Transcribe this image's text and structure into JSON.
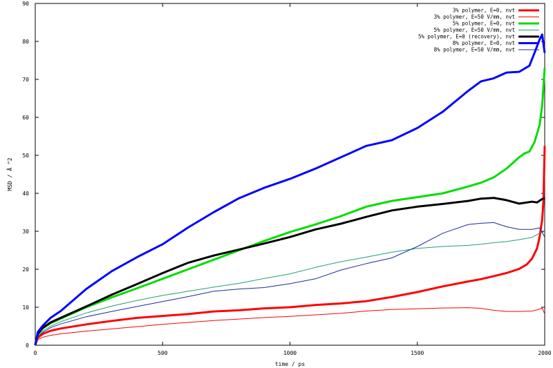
{
  "chart_data": {
    "type": "line",
    "title": "",
    "xlabel": "time / ps",
    "ylabel": "MSD / Å ^2",
    "xlim": [
      0,
      2000
    ],
    "ylim": [
      0,
      90
    ],
    "xticks": [
      0,
      500,
      1000,
      1500,
      2000
    ],
    "yticks": [
      0,
      10,
      20,
      30,
      40,
      50,
      60,
      70,
      80,
      90
    ],
    "grid": false,
    "legend_position": "top-right",
    "series": [
      {
        "name": "3% polymer, E=0, nvt",
        "color": "#ff0000",
        "line_width": "thick",
        "x": [
          0,
          10,
          30,
          60,
          100,
          200,
          300,
          400,
          500,
          600,
          700,
          800,
          900,
          1000,
          1100,
          1200,
          1300,
          1400,
          1500,
          1600,
          1700,
          1750,
          1800,
          1850,
          1900,
          1930,
          1950,
          1970,
          1980,
          1990,
          1995,
          2000
        ],
        "y": [
          0,
          2.0,
          3.0,
          3.8,
          4.4,
          5.5,
          6.4,
          7.2,
          7.7,
          8.2,
          8.9,
          9.2,
          9.7,
          10.0,
          10.6,
          11.0,
          11.6,
          12.7,
          14.0,
          15.5,
          16.8,
          17.4,
          18.2,
          19.0,
          20.1,
          21.3,
          22.8,
          25.5,
          28.5,
          33.0,
          38.0,
          52.5
        ]
      },
      {
        "name": "3% polymer, E=50 V/mm, nvt",
        "color": "#ff0000",
        "line_width": "thin",
        "x": [
          0,
          10,
          30,
          60,
          100,
          200,
          300,
          400,
          500,
          600,
          700,
          800,
          900,
          1000,
          1100,
          1200,
          1300,
          1400,
          1500,
          1600,
          1700,
          1750,
          1800,
          1850,
          1900,
          1950,
          1970,
          1990,
          2000
        ],
        "y": [
          0,
          1.5,
          2.1,
          2.6,
          3.0,
          3.7,
          4.3,
          4.9,
          5.5,
          6.0,
          6.5,
          6.9,
          7.3,
          7.6,
          8.0,
          8.4,
          9.0,
          9.4,
          9.6,
          9.8,
          9.9,
          9.7,
          9.2,
          8.9,
          8.9,
          9.0,
          9.3,
          9.8,
          8.2
        ]
      },
      {
        "name": "5% polymer, E=0, nvt",
        "color": "#00dd00",
        "line_width": "thick",
        "x": [
          0,
          10,
          30,
          60,
          100,
          200,
          300,
          400,
          500,
          600,
          700,
          800,
          900,
          1000,
          1100,
          1200,
          1300,
          1400,
          1500,
          1600,
          1700,
          1750,
          1800,
          1850,
          1900,
          1920,
          1940,
          1960,
          1980,
          1990,
          2000
        ],
        "y": [
          0,
          3.0,
          4.5,
          5.8,
          7.0,
          10.0,
          12.6,
          15.0,
          17.5,
          20.0,
          22.5,
          25.0,
          27.5,
          29.8,
          31.8,
          34.0,
          36.5,
          38.0,
          39.0,
          40.0,
          41.8,
          42.8,
          44.2,
          46.5,
          49.5,
          50.5,
          51.0,
          53.5,
          58.0,
          63.0,
          73.0
        ]
      },
      {
        "name": "5% polymer, E=50 V/mm, nvt",
        "color": "#20a070",
        "line_width": "thin",
        "x": [
          0,
          10,
          30,
          60,
          100,
          200,
          300,
          400,
          500,
          600,
          700,
          800,
          900,
          1000,
          1100,
          1200,
          1300,
          1400,
          1500,
          1600,
          1700,
          1750,
          1800,
          1850,
          1900,
          1950,
          1980,
          2000
        ],
        "y": [
          0,
          2.5,
          3.8,
          5.0,
          6.2,
          8.5,
          10.3,
          11.8,
          13.1,
          14.2,
          15.3,
          16.3,
          17.6,
          18.8,
          20.5,
          22.0,
          23.2,
          24.5,
          25.5,
          26.0,
          26.3,
          26.6,
          27.0,
          27.3,
          27.8,
          28.4,
          29.5,
          30.0
        ]
      },
      {
        "name": "5% polymer, E=0 (recovery), nvt",
        "color": "#000000",
        "line_width": "thick",
        "x": [
          0,
          10,
          30,
          60,
          100,
          200,
          300,
          400,
          500,
          600,
          700,
          800,
          900,
          1000,
          1100,
          1200,
          1300,
          1400,
          1500,
          1600,
          1700,
          1750,
          1800,
          1850,
          1900,
          1950,
          1970,
          1990,
          2000
        ],
        "y": [
          0,
          3.0,
          4.6,
          6.0,
          7.2,
          10.2,
          13.3,
          16.1,
          19.0,
          21.7,
          23.6,
          25.2,
          26.8,
          28.5,
          30.5,
          32.0,
          33.8,
          35.5,
          36.5,
          37.2,
          38.0,
          38.6,
          38.8,
          38.2,
          37.3,
          37.8,
          37.6,
          38.5,
          38.7
        ]
      },
      {
        "name": "8% polymer, E=0, nvt",
        "color": "#0000ff",
        "line_width": "thick",
        "x": [
          0,
          10,
          30,
          60,
          100,
          200,
          300,
          400,
          500,
          600,
          700,
          800,
          900,
          1000,
          1100,
          1200,
          1300,
          1400,
          1500,
          1600,
          1700,
          1750,
          1800,
          1850,
          1900,
          1940,
          1960,
          1980,
          1990,
          2000
        ],
        "y": [
          0,
          3.5,
          5.2,
          7.2,
          9.0,
          14.8,
          19.5,
          23.2,
          26.6,
          31.0,
          35.0,
          38.7,
          41.5,
          43.8,
          46.5,
          49.5,
          52.5,
          54.0,
          57.2,
          61.5,
          67.0,
          69.5,
          70.3,
          71.8,
          72.0,
          73.6,
          77.0,
          80.5,
          81.8,
          77.0
        ]
      },
      {
        "name": "8% polymer, E=50 V/mm, nvt",
        "color": "#1a2aa0",
        "line_width": "thin",
        "x": [
          0,
          10,
          30,
          60,
          100,
          200,
          300,
          400,
          500,
          600,
          700,
          800,
          900,
          1000,
          1100,
          1200,
          1300,
          1400,
          1500,
          1600,
          1700,
          1750,
          1800,
          1850,
          1900,
          1950,
          1980,
          2000
        ],
        "y": [
          0,
          2.2,
          3.4,
          4.6,
          5.6,
          7.5,
          8.9,
          10.2,
          11.5,
          12.8,
          14.2,
          14.8,
          15.2,
          16.2,
          17.5,
          19.8,
          21.5,
          23.0,
          26.0,
          29.5,
          31.8,
          32.1,
          32.3,
          31.2,
          30.5,
          30.5,
          30.9,
          28.5
        ]
      }
    ]
  }
}
